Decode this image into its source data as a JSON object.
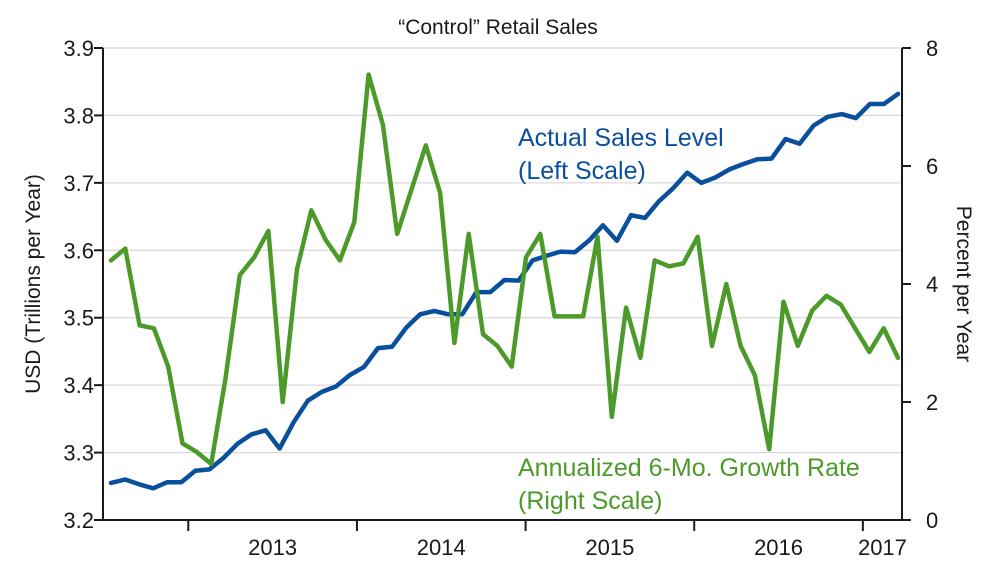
{
  "chart_data": {
    "type": "line",
    "title": "“Control” Retail Sales",
    "xlabel": "",
    "ylabel": "USD (Trillions per Year)",
    "y2label": "Percent per Year",
    "ylim": [
      3.2,
      3.9
    ],
    "y2lim": [
      0,
      8
    ],
    "yticks": [
      "3.2",
      "3.3",
      "3.4",
      "3.5",
      "3.6",
      "3.7",
      "3.8",
      "3.9"
    ],
    "y2ticks": [
      "0",
      "2",
      "4",
      "6",
      "8"
    ],
    "year_labels": [
      "2013",
      "2014",
      "2015",
      "2016",
      "2017"
    ],
    "grid": true,
    "series": [
      {
        "name": "Actual Sales Level (Left Scale)",
        "label_lines": [
          "Actual Sales Level",
          "(Left Scale)"
        ],
        "axis": "left",
        "color": "#0a4f9c",
        "values": [
          3.255,
          3.26,
          3.253,
          3.247,
          3.256,
          3.256,
          3.273,
          3.275,
          3.292,
          3.313,
          3.327,
          3.333,
          3.306,
          3.345,
          3.377,
          3.39,
          3.398,
          3.415,
          3.427,
          3.455,
          3.457,
          3.485,
          3.505,
          3.51,
          3.505,
          3.505,
          3.538,
          3.538,
          3.556,
          3.555,
          3.585,
          3.592,
          3.598,
          3.597,
          3.614,
          3.637,
          3.614,
          3.652,
          3.648,
          3.673,
          3.692,
          3.715,
          3.7,
          3.708,
          3.72,
          3.728,
          3.735,
          3.736,
          3.765,
          3.758,
          3.785,
          3.798,
          3.802,
          3.796,
          3.817,
          3.817,
          3.832
        ]
      },
      {
        "name": "Annualized 6-Mo. Growth Rate (Right Scale)",
        "label_lines": [
          "Annualized 6-Mo. Growth Rate",
          "(Right Scale)"
        ],
        "axis": "right",
        "color": "#4c9a2a",
        "values": [
          4.4,
          4.6,
          3.3,
          3.25,
          2.6,
          1.3,
          1.15,
          0.95,
          2.4,
          4.15,
          4.45,
          4.9,
          2.0,
          4.25,
          5.25,
          4.75,
          4.4,
          5.05,
          7.55,
          6.7,
          4.85,
          5.6,
          6.35,
          5.55,
          3.0,
          4.85,
          3.15,
          2.95,
          2.6,
          4.45,
          4.85,
          3.45,
          3.45,
          3.45,
          4.8,
          1.75,
          3.6,
          2.75,
          4.4,
          4.3,
          4.35,
          4.8,
          2.95,
          4.0,
          2.95,
          2.45,
          1.2,
          3.7,
          2.95,
          3.55,
          3.8,
          3.65,
          3.25,
          2.85,
          3.25,
          2.75
        ]
      }
    ]
  }
}
